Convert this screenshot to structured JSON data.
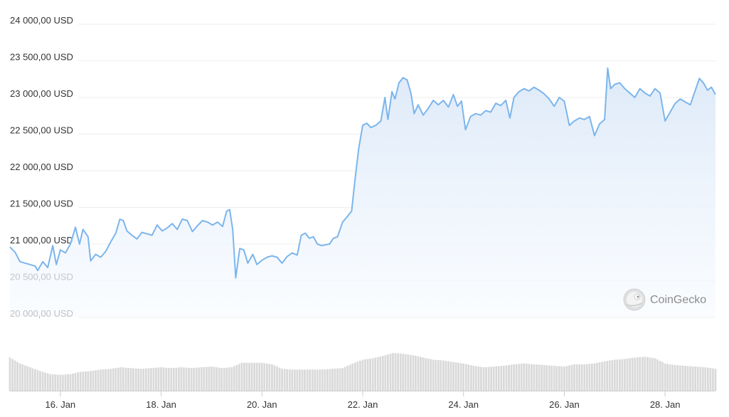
{
  "chart_data": {
    "type": "area",
    "ylim": [
      20000,
      24000
    ],
    "y_ticks": [
      "20 000,00 USD",
      "20 500,00 USD",
      "21 000,00 USD",
      "21 500,00 USD",
      "22 000,00 USD",
      "22 500,00 USD",
      "23 000,00 USD",
      "23 500,00 USD",
      "24 000,00 USD"
    ],
    "y_tick_values": [
      20000,
      20500,
      21000,
      21500,
      22000,
      22500,
      23000,
      23500,
      24000
    ],
    "x_range_days": [
      15.0,
      29.0
    ],
    "x_ticks": [
      "16. Jan",
      "18. Jan",
      "20. Jan",
      "22. Jan",
      "24. Jan",
      "26. Jan",
      "28. Jan"
    ],
    "x_tick_days": [
      16,
      18,
      20,
      22,
      24,
      26,
      28
    ],
    "line_color": "#7cb5ec",
    "area_color_top": "#dce9f8",
    "area_color_bottom": "#f8fbff",
    "volume_bar_color": "#d9d9d9",
    "grid": true,
    "price_series": [
      [
        15.0,
        20960
      ],
      [
        15.1,
        20890
      ],
      [
        15.2,
        20760
      ],
      [
        15.3,
        20740
      ],
      [
        15.4,
        20720
      ],
      [
        15.5,
        20700
      ],
      [
        15.55,
        20640
      ],
      [
        15.65,
        20760
      ],
      [
        15.75,
        20680
      ],
      [
        15.85,
        20980
      ],
      [
        15.92,
        20720
      ],
      [
        16.0,
        20920
      ],
      [
        16.1,
        20880
      ],
      [
        16.2,
        21000
      ],
      [
        16.3,
        21230
      ],
      [
        16.38,
        21000
      ],
      [
        16.45,
        21200
      ],
      [
        16.55,
        21100
      ],
      [
        16.6,
        20770
      ],
      [
        16.7,
        20860
      ],
      [
        16.8,
        20820
      ],
      [
        16.9,
        20900
      ],
      [
        17.0,
        21030
      ],
      [
        17.1,
        21150
      ],
      [
        17.18,
        21340
      ],
      [
        17.25,
        21320
      ],
      [
        17.32,
        21180
      ],
      [
        17.42,
        21120
      ],
      [
        17.52,
        21070
      ],
      [
        17.62,
        21160
      ],
      [
        17.72,
        21140
      ],
      [
        17.82,
        21120
      ],
      [
        17.92,
        21260
      ],
      [
        18.02,
        21180
      ],
      [
        18.12,
        21220
      ],
      [
        18.22,
        21280
      ],
      [
        18.32,
        21200
      ],
      [
        18.42,
        21340
      ],
      [
        18.52,
        21320
      ],
      [
        18.62,
        21170
      ],
      [
        18.72,
        21250
      ],
      [
        18.82,
        21320
      ],
      [
        18.92,
        21300
      ],
      [
        19.02,
        21260
      ],
      [
        19.12,
        21300
      ],
      [
        19.22,
        21240
      ],
      [
        19.3,
        21450
      ],
      [
        19.36,
        21470
      ],
      [
        19.42,
        21200
      ],
      [
        19.48,
        20540
      ],
      [
        19.56,
        20940
      ],
      [
        19.64,
        20920
      ],
      [
        19.72,
        20740
      ],
      [
        19.82,
        20860
      ],
      [
        19.9,
        20720
      ],
      [
        20.0,
        20780
      ],
      [
        20.1,
        20820
      ],
      [
        20.2,
        20840
      ],
      [
        20.3,
        20820
      ],
      [
        20.4,
        20740
      ],
      [
        20.5,
        20830
      ],
      [
        20.6,
        20880
      ],
      [
        20.7,
        20850
      ],
      [
        20.78,
        21120
      ],
      [
        20.86,
        21150
      ],
      [
        20.94,
        21080
      ],
      [
        21.02,
        21100
      ],
      [
        21.1,
        21000
      ],
      [
        21.18,
        20980
      ],
      [
        21.26,
        20990
      ],
      [
        21.34,
        21000
      ],
      [
        21.42,
        21080
      ],
      [
        21.5,
        21100
      ],
      [
        21.6,
        21300
      ],
      [
        21.7,
        21380
      ],
      [
        21.78,
        21450
      ],
      [
        21.85,
        21900
      ],
      [
        21.92,
        22300
      ],
      [
        22.0,
        22620
      ],
      [
        22.08,
        22650
      ],
      [
        22.16,
        22590
      ],
      [
        22.26,
        22620
      ],
      [
        22.36,
        22680
      ],
      [
        22.44,
        23000
      ],
      [
        22.5,
        22700
      ],
      [
        22.58,
        23080
      ],
      [
        22.64,
        22980
      ],
      [
        22.72,
        23200
      ],
      [
        22.8,
        23270
      ],
      [
        22.88,
        23240
      ],
      [
        22.96,
        23050
      ],
      [
        23.02,
        22780
      ],
      [
        23.1,
        22900
      ],
      [
        23.2,
        22760
      ],
      [
        23.3,
        22850
      ],
      [
        23.4,
        22960
      ],
      [
        23.5,
        22900
      ],
      [
        23.6,
        22960
      ],
      [
        23.7,
        22870
      ],
      [
        23.8,
        23040
      ],
      [
        23.88,
        22880
      ],
      [
        23.96,
        22950
      ],
      [
        24.04,
        22560
      ],
      [
        24.14,
        22740
      ],
      [
        24.24,
        22780
      ],
      [
        24.34,
        22760
      ],
      [
        24.44,
        22820
      ],
      [
        24.54,
        22800
      ],
      [
        24.64,
        22920
      ],
      [
        24.74,
        22890
      ],
      [
        24.84,
        22960
      ],
      [
        24.92,
        22720
      ],
      [
        25.0,
        23000
      ],
      [
        25.1,
        23080
      ],
      [
        25.2,
        23120
      ],
      [
        25.3,
        23090
      ],
      [
        25.4,
        23140
      ],
      [
        25.5,
        23100
      ],
      [
        25.6,
        23050
      ],
      [
        25.7,
        22980
      ],
      [
        25.8,
        22880
      ],
      [
        25.9,
        23000
      ],
      [
        26.0,
        22950
      ],
      [
        26.1,
        22620
      ],
      [
        26.2,
        22680
      ],
      [
        26.3,
        22720
      ],
      [
        26.4,
        22700
      ],
      [
        26.5,
        22740
      ],
      [
        26.6,
        22480
      ],
      [
        26.7,
        22640
      ],
      [
        26.8,
        22700
      ],
      [
        26.86,
        23400
      ],
      [
        26.92,
        23120
      ],
      [
        27.0,
        23180
      ],
      [
        27.1,
        23200
      ],
      [
        27.2,
        23120
      ],
      [
        27.3,
        23060
      ],
      [
        27.4,
        23000
      ],
      [
        27.5,
        23120
      ],
      [
        27.6,
        23060
      ],
      [
        27.7,
        23020
      ],
      [
        27.8,
        23120
      ],
      [
        27.9,
        23060
      ],
      [
        28.0,
        22680
      ],
      [
        28.1,
        22800
      ],
      [
        28.2,
        22920
      ],
      [
        28.3,
        22980
      ],
      [
        28.4,
        22940
      ],
      [
        28.5,
        22900
      ],
      [
        28.6,
        23100
      ],
      [
        28.68,
        23260
      ],
      [
        28.76,
        23200
      ],
      [
        28.84,
        23100
      ],
      [
        28.92,
        23140
      ],
      [
        29.0,
        23040
      ]
    ],
    "volume_series": [
      [
        15.0,
        0.88
      ],
      [
        15.2,
        0.72
      ],
      [
        15.4,
        0.62
      ],
      [
        15.6,
        0.52
      ],
      [
        15.8,
        0.44
      ],
      [
        16.0,
        0.42
      ],
      [
        16.2,
        0.44
      ],
      [
        16.4,
        0.5
      ],
      [
        16.6,
        0.52
      ],
      [
        16.8,
        0.56
      ],
      [
        17.0,
        0.58
      ],
      [
        17.2,
        0.62
      ],
      [
        17.4,
        0.6
      ],
      [
        17.6,
        0.58
      ],
      [
        17.8,
        0.6
      ],
      [
        18.0,
        0.62
      ],
      [
        18.2,
        0.6
      ],
      [
        18.4,
        0.62
      ],
      [
        18.6,
        0.6
      ],
      [
        18.8,
        0.62
      ],
      [
        19.0,
        0.64
      ],
      [
        19.2,
        0.6
      ],
      [
        19.4,
        0.62
      ],
      [
        19.6,
        0.74
      ],
      [
        19.8,
        0.74
      ],
      [
        20.0,
        0.74
      ],
      [
        20.2,
        0.7
      ],
      [
        20.4,
        0.58
      ],
      [
        20.6,
        0.56
      ],
      [
        20.8,
        0.56
      ],
      [
        21.0,
        0.56
      ],
      [
        21.2,
        0.56
      ],
      [
        21.4,
        0.58
      ],
      [
        21.6,
        0.6
      ],
      [
        21.8,
        0.72
      ],
      [
        22.0,
        0.82
      ],
      [
        22.2,
        0.86
      ],
      [
        22.4,
        0.92
      ],
      [
        22.6,
        1.0
      ],
      [
        22.8,
        0.98
      ],
      [
        23.0,
        0.94
      ],
      [
        23.2,
        0.88
      ],
      [
        23.4,
        0.82
      ],
      [
        23.6,
        0.8
      ],
      [
        23.8,
        0.76
      ],
      [
        24.0,
        0.72
      ],
      [
        24.2,
        0.66
      ],
      [
        24.4,
        0.62
      ],
      [
        24.6,
        0.64
      ],
      [
        24.8,
        0.66
      ],
      [
        25.0,
        0.7
      ],
      [
        25.2,
        0.72
      ],
      [
        25.4,
        0.7
      ],
      [
        25.6,
        0.68
      ],
      [
        25.8,
        0.66
      ],
      [
        26.0,
        0.64
      ],
      [
        26.2,
        0.7
      ],
      [
        26.4,
        0.7
      ],
      [
        26.6,
        0.72
      ],
      [
        26.8,
        0.78
      ],
      [
        27.0,
        0.82
      ],
      [
        27.2,
        0.84
      ],
      [
        27.4,
        0.88
      ],
      [
        27.6,
        0.9
      ],
      [
        27.8,
        0.86
      ],
      [
        28.0,
        0.72
      ],
      [
        28.2,
        0.68
      ],
      [
        28.4,
        0.66
      ],
      [
        28.6,
        0.64
      ],
      [
        28.8,
        0.62
      ],
      [
        29.0,
        0.58
      ]
    ]
  },
  "branding": {
    "name": "CoinGecko",
    "logo_icon": "gecko-logo-icon"
  }
}
